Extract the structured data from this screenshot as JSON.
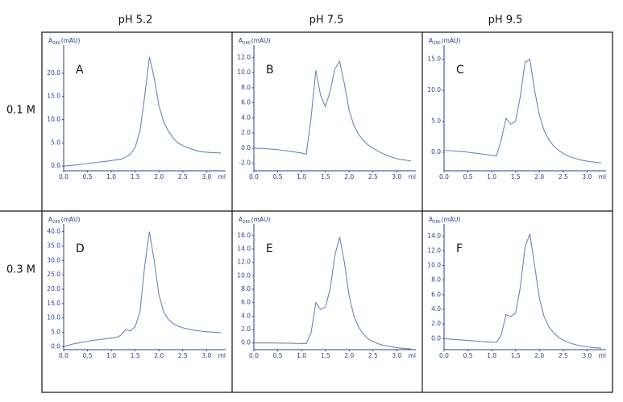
{
  "figure": {
    "column_headers": [
      "pH 5.2",
      "pH 7.5",
      "pH 9.5"
    ],
    "row_headers": [
      "0.1 M",
      "0.3 M"
    ]
  },
  "chart_data": [
    {
      "type": "line",
      "annotation": "A",
      "ylabel": "A",
      "ylabel_sub": "280",
      "ylabel_unit": "(mAU)",
      "xlabel": "ml",
      "color": "#6b86b8",
      "x": [
        0,
        0.1,
        0.2,
        0.3,
        0.4,
        0.5,
        0.6,
        0.7,
        0.8,
        0.9,
        1.0,
        1.1,
        1.2,
        1.3,
        1.4,
        1.5,
        1.6,
        1.7,
        1.8,
        1.9,
        2.0,
        2.1,
        2.2,
        2.3,
        2.4,
        2.5,
        2.6,
        2.7,
        2.8,
        2.9,
        3.0,
        3.1,
        3.2,
        3.3
      ],
      "values": [
        0.0,
        0.1,
        0.2,
        0.3,
        0.45,
        0.55,
        0.7,
        0.8,
        0.95,
        1.05,
        1.2,
        1.35,
        1.5,
        1.9,
        2.6,
        4.0,
        7.5,
        15.0,
        23.5,
        19.0,
        13.0,
        9.5,
        7.5,
        6.0,
        5.0,
        4.4,
        4.0,
        3.6,
        3.3,
        3.1,
        3.0,
        2.9,
        2.9,
        2.8
      ],
      "xlim": [
        0,
        3.4
      ],
      "xticks": [
        {
          "value": 0,
          "label": "0.0"
        },
        {
          "value": 0.5,
          "label": "0.5"
        },
        {
          "value": 1,
          "label": "1.0"
        },
        {
          "value": 1.5,
          "label": "1.5"
        },
        {
          "value": 2,
          "label": "2.0"
        },
        {
          "value": 2.5,
          "label": "2.5"
        },
        {
          "value": 3,
          "label": "3.0"
        }
      ],
      "ylim": [
        -1,
        25
      ],
      "yticks": [
        {
          "value": 0,
          "label": "0.0"
        },
        {
          "value": 5,
          "label": "5.0"
        },
        {
          "value": 10,
          "label": "10.0"
        },
        {
          "value": 15,
          "label": "15.0"
        },
        {
          "value": 20,
          "label": "20.0"
        }
      ]
    },
    {
      "type": "line",
      "annotation": "B",
      "ylabel": "A",
      "ylabel_sub": "280",
      "ylabel_unit": "(mAU)",
      "xlabel": "ml",
      "color": "#6b86b8",
      "x": [
        0,
        0.1,
        0.2,
        0.3,
        0.4,
        0.5,
        0.6,
        0.7,
        0.8,
        0.9,
        1.0,
        1.1,
        1.2,
        1.3,
        1.4,
        1.5,
        1.6,
        1.7,
        1.8,
        1.9,
        2.0,
        2.1,
        2.2,
        2.3,
        2.4,
        2.5,
        2.6,
        2.7,
        2.8,
        2.9,
        3.0,
        3.1,
        3.2,
        3.3
      ],
      "values": [
        0,
        -0.02,
        -0.05,
        -0.1,
        -0.15,
        -0.2,
        -0.28,
        -0.36,
        -0.45,
        -0.55,
        -0.65,
        -0.8,
        4.0,
        10.3,
        7.0,
        5.5,
        7.5,
        10.5,
        11.5,
        8.5,
        5.0,
        3.0,
        1.8,
        1.0,
        0.4,
        0.0,
        -0.4,
        -0.7,
        -1.0,
        -1.2,
        -1.4,
        -1.5,
        -1.6,
        -1.7
      ],
      "xlim": [
        0,
        3.4
      ],
      "xticks": [
        {
          "value": 0,
          "label": "0.0"
        },
        {
          "value": 0.5,
          "label": "0.5"
        },
        {
          "value": 1,
          "label": "1.0"
        },
        {
          "value": 1.5,
          "label": "1.5"
        },
        {
          "value": 2,
          "label": "2.0"
        },
        {
          "value": 2.5,
          "label": "2.5"
        },
        {
          "value": 3,
          "label": "3.0"
        }
      ],
      "ylim": [
        -3,
        13
      ],
      "yticks": [
        {
          "value": -2,
          "label": "-2.0"
        },
        {
          "value": 0,
          "label": "0.0"
        },
        {
          "value": 2,
          "label": "2.0"
        },
        {
          "value": 4,
          "label": "4.0"
        },
        {
          "value": 6,
          "label": "6.0"
        },
        {
          "value": 8,
          "label": "8.0"
        },
        {
          "value": 10,
          "label": "10.0"
        },
        {
          "value": 12,
          "label": "12.0"
        }
      ]
    },
    {
      "type": "line",
      "annotation": "C",
      "ylabel": "A",
      "ylabel_sub": "280",
      "ylabel_unit": "(mAU)",
      "xlabel": "ml",
      "color": "#6b86b8",
      "x": [
        0,
        0.1,
        0.2,
        0.3,
        0.4,
        0.5,
        0.6,
        0.7,
        0.8,
        0.9,
        1.0,
        1.1,
        1.2,
        1.3,
        1.4,
        1.5,
        1.6,
        1.7,
        1.8,
        1.9,
        2.0,
        2.1,
        2.2,
        2.3,
        2.4,
        2.5,
        2.6,
        2.7,
        2.8,
        2.9,
        3.0,
        3.1,
        3.2,
        3.3
      ],
      "values": [
        0.3,
        0.25,
        0.2,
        0.15,
        0.1,
        0.0,
        -0.1,
        -0.2,
        -0.3,
        -0.4,
        -0.5,
        -0.6,
        2.0,
        5.5,
        4.5,
        5.0,
        9.0,
        14.5,
        15.0,
        10.0,
        6.0,
        3.5,
        2.0,
        1.0,
        0.3,
        -0.2,
        -0.6,
        -0.9,
        -1.1,
        -1.3,
        -1.45,
        -1.55,
        -1.65,
        -1.75
      ],
      "xlim": [
        0,
        3.4
      ],
      "xticks": [
        {
          "value": 0,
          "label": "0.0"
        },
        {
          "value": 0.5,
          "label": "0.5"
        },
        {
          "value": 1,
          "label": "1.0"
        },
        {
          "value": 1.5,
          "label": "1.5"
        },
        {
          "value": 2,
          "label": "2.0"
        },
        {
          "value": 2.5,
          "label": "2.5"
        },
        {
          "value": 3,
          "label": "3.0"
        }
      ],
      "ylim": [
        -3,
        16.5
      ],
      "yticks": [
        {
          "value": 0,
          "label": "0.0"
        },
        {
          "value": 5,
          "label": "5.0"
        },
        {
          "value": 10,
          "label": "10.0"
        },
        {
          "value": 15,
          "label": "15.0"
        }
      ]
    },
    {
      "type": "line",
      "annotation": "D",
      "ylabel": "A",
      "ylabel_sub": "280",
      "ylabel_unit": "(mAU)",
      "xlabel": "ml",
      "color": "#6b86b8",
      "x": [
        0,
        0.1,
        0.2,
        0.3,
        0.4,
        0.5,
        0.6,
        0.7,
        0.8,
        0.9,
        1.0,
        1.1,
        1.2,
        1.3,
        1.4,
        1.5,
        1.6,
        1.7,
        1.8,
        1.9,
        2.0,
        2.1,
        2.2,
        2.3,
        2.4,
        2.5,
        2.6,
        2.7,
        2.8,
        2.9,
        3.0,
        3.1,
        3.2,
        3.3
      ],
      "values": [
        0,
        0.5,
        1.0,
        1.3,
        1.6,
        1.9,
        2.2,
        2.4,
        2.6,
        2.8,
        3.0,
        3.2,
        4.0,
        6.0,
        5.5,
        7.0,
        12.0,
        28.0,
        40.0,
        30.0,
        18.0,
        12.0,
        9.5,
        8.0,
        7.2,
        6.6,
        6.2,
        5.9,
        5.6,
        5.4,
        5.2,
        5.1,
        5.0,
        4.9
      ],
      "xlim": [
        0,
        3.4
      ],
      "xticks": [
        {
          "value": 0,
          "label": "0.0"
        },
        {
          "value": 0.5,
          "label": "0.5"
        },
        {
          "value": 1,
          "label": "1.0"
        },
        {
          "value": 1.5,
          "label": "1.5"
        },
        {
          "value": 2,
          "label": "2.0"
        },
        {
          "value": 2.5,
          "label": "2.5"
        },
        {
          "value": 3,
          "label": "3.0"
        }
      ],
      "ylim": [
        -1,
        41
      ],
      "yticks": [
        {
          "value": 0,
          "label": "0.0"
        },
        {
          "value": 5,
          "label": "5.0"
        },
        {
          "value": 10,
          "label": "10.0"
        },
        {
          "value": 15,
          "label": "15.0"
        },
        {
          "value": 20,
          "label": "20.0"
        },
        {
          "value": 25,
          "label": "25.0"
        },
        {
          "value": 30,
          "label": "30.0"
        },
        {
          "value": 35,
          "label": "35.0"
        },
        {
          "value": 40,
          "label": "40.0"
        }
      ]
    },
    {
      "type": "line",
      "annotation": "E",
      "ylabel": "A",
      "ylabel_sub": "280",
      "ylabel_unit": "(mAU)",
      "xlabel": "ml",
      "color": "#6b86b8",
      "x": [
        0,
        0.1,
        0.2,
        0.3,
        0.4,
        0.5,
        0.6,
        0.7,
        0.8,
        0.9,
        1.0,
        1.1,
        1.2,
        1.3,
        1.4,
        1.5,
        1.6,
        1.7,
        1.8,
        1.9,
        2.0,
        2.1,
        2.2,
        2.3,
        2.4,
        2.5,
        2.6,
        2.7,
        2.8,
        2.9,
        3.0,
        3.1,
        3.2,
        3.3
      ],
      "values": [
        0,
        0,
        0,
        0,
        0,
        -0.02,
        -0.03,
        -0.04,
        -0.05,
        -0.07,
        -0.08,
        -0.1,
        1.5,
        6.0,
        5.0,
        5.3,
        8.0,
        13.0,
        15.8,
        12.0,
        7.0,
        4.0,
        2.3,
        1.3,
        0.6,
        0.2,
        -0.1,
        -0.3,
        -0.45,
        -0.6,
        -0.7,
        -0.8,
        -0.85,
        -0.9
      ],
      "xlim": [
        0,
        3.4
      ],
      "xticks": [
        {
          "value": 0,
          "label": "0.0"
        },
        {
          "value": 0.5,
          "label": "0.5"
        },
        {
          "value": 1,
          "label": "1.0"
        },
        {
          "value": 1.5,
          "label": "1.5"
        },
        {
          "value": 2,
          "label": "2.0"
        },
        {
          "value": 2.5,
          "label": "2.5"
        },
        {
          "value": 3,
          "label": "3.0"
        }
      ],
      "ylim": [
        -1,
        17
      ],
      "yticks": [
        {
          "value": 0,
          "label": "0.0"
        },
        {
          "value": 2,
          "label": "2.0"
        },
        {
          "value": 4,
          "label": "4.0"
        },
        {
          "value": 6,
          "label": "6.0"
        },
        {
          "value": 8,
          "label": "8.0"
        },
        {
          "value": 10,
          "label": "10.0"
        },
        {
          "value": 12,
          "label": "12.0"
        },
        {
          "value": 14,
          "label": "14.0"
        },
        {
          "value": 16,
          "label": "16.0"
        }
      ]
    },
    {
      "type": "line",
      "annotation": "F",
      "ylabel": "A",
      "ylabel_sub": "280",
      "ylabel_unit": "(mAU)",
      "xlabel": "ml",
      "color": "#6b86b8",
      "x": [
        0,
        0.1,
        0.2,
        0.3,
        0.4,
        0.5,
        0.6,
        0.7,
        0.8,
        0.9,
        1.0,
        1.1,
        1.2,
        1.3,
        1.4,
        1.5,
        1.6,
        1.7,
        1.8,
        1.9,
        2.0,
        2.1,
        2.2,
        2.3,
        2.4,
        2.5,
        2.6,
        2.7,
        2.8,
        2.9,
        3.0,
        3.1,
        3.2,
        3.3
      ],
      "values": [
        0,
        -0.05,
        -0.1,
        -0.15,
        -0.2,
        -0.25,
        -0.3,
        -0.35,
        -0.4,
        -0.43,
        -0.47,
        -0.5,
        0.5,
        3.3,
        3.0,
        3.5,
        7.0,
        12.5,
        14.3,
        10.0,
        5.5,
        3.0,
        1.6,
        0.8,
        0.2,
        -0.2,
        -0.5,
        -0.7,
        -0.9,
        -1.0,
        -1.1,
        -1.2,
        -1.25,
        -1.3
      ],
      "xlim": [
        0,
        3.4
      ],
      "xticks": [
        {
          "value": 0,
          "label": "0.0"
        },
        {
          "value": 0.5,
          "label": "0.5"
        },
        {
          "value": 1,
          "label": "1.0"
        },
        {
          "value": 1.5,
          "label": "1.5"
        },
        {
          "value": 2,
          "label": "2.0"
        },
        {
          "value": 2.5,
          "label": "2.5"
        },
        {
          "value": 3,
          "label": "3.0"
        }
      ],
      "ylim": [
        -1.5,
        15
      ],
      "yticks": [
        {
          "value": 0,
          "label": "0.0"
        },
        {
          "value": 2,
          "label": "2.0"
        },
        {
          "value": 4,
          "label": "4.0"
        },
        {
          "value": 6,
          "label": "6.0"
        },
        {
          "value": 8,
          "label": "8.0"
        },
        {
          "value": 10,
          "label": "10.0"
        },
        {
          "value": 12,
          "label": "12.0"
        },
        {
          "value": 14,
          "label": "14.0"
        }
      ]
    }
  ]
}
